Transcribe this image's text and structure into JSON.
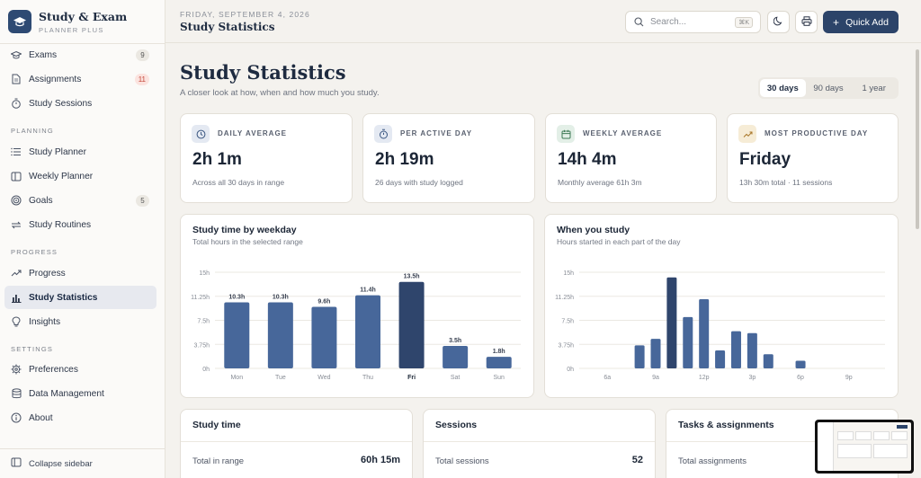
{
  "brand": {
    "title": "Study & Exam",
    "subtitle": "PLANNER PLUS"
  },
  "sidebar": {
    "top_items": [
      {
        "label": "Exams",
        "icon": "graduation-cap-icon",
        "badge": "9"
      },
      {
        "label": "Assignments",
        "icon": "file-icon",
        "badge": "11"
      },
      {
        "label": "Study Sessions",
        "icon": "stopwatch-icon"
      }
    ],
    "sections": [
      {
        "label": "PLANNING",
        "items": [
          {
            "label": "Study Planner",
            "icon": "list-icon"
          },
          {
            "label": "Weekly Planner",
            "icon": "columns-icon"
          },
          {
            "label": "Goals",
            "icon": "target-icon",
            "badge": "5"
          },
          {
            "label": "Study Routines",
            "icon": "repeat-icon"
          }
        ]
      },
      {
        "label": "PROGRESS",
        "items": [
          {
            "label": "Progress",
            "icon": "trend-icon"
          },
          {
            "label": "Study Statistics",
            "icon": "bar-chart-icon",
            "active": true
          },
          {
            "label": "Insights",
            "icon": "lightbulb-icon"
          }
        ]
      },
      {
        "label": "SETTINGS",
        "items": [
          {
            "label": "Preferences",
            "icon": "gear-icon"
          },
          {
            "label": "Data Management",
            "icon": "database-icon"
          },
          {
            "label": "About",
            "icon": "info-icon"
          }
        ]
      }
    ],
    "collapse_label": "Collapse sidebar"
  },
  "header": {
    "date": "FRIDAY, SEPTEMBER 4, 2026",
    "title": "Study Statistics",
    "search_placeholder": "Search...",
    "search_shortcut": "⌘K",
    "quick_add": "Quick Add"
  },
  "page": {
    "title": "Study Statistics",
    "subtitle": "A closer look at how, when and how much you study.",
    "ranges": [
      "30 days",
      "90 days",
      "1 year"
    ],
    "active_range": "30 days"
  },
  "stats": [
    {
      "label": "DAILY AVERAGE",
      "value": "2h 1m",
      "note": "Across all 30 days in range",
      "icon": "clock-icon",
      "tint": "#e4e9f2"
    },
    {
      "label": "PER ACTIVE DAY",
      "value": "2h 19m",
      "note": "26 days with study logged",
      "icon": "stopwatch-icon",
      "tint": "#e4e9f2"
    },
    {
      "label": "WEEKLY AVERAGE",
      "value": "14h 4m",
      "note": "Monthly average 61h 3m",
      "icon": "calendar-icon",
      "tint": "#e3efe7"
    },
    {
      "label": "MOST PRODUCTIVE DAY",
      "value": "Friday",
      "note": "13h 30m total · 11 sessions",
      "icon": "trend-icon",
      "tint": "#f6ecd6"
    }
  ],
  "colors": {
    "accent": "#2c4469",
    "bar": "#47679a",
    "bar_highlight": "#2f456c"
  },
  "chart_data": [
    {
      "type": "bar",
      "title": "Study time by weekday",
      "subtitle": "Total hours in the selected range",
      "categories": [
        "Mon",
        "Tue",
        "Wed",
        "Thu",
        "Fri",
        "Sat",
        "Sun"
      ],
      "values": [
        10.3,
        10.3,
        9.6,
        11.4,
        13.5,
        3.5,
        1.8
      ],
      "value_labels": [
        "10.3h",
        "10.3h",
        "9.6h",
        "11.4h",
        "13.5h",
        "3.5h",
        "1.8h"
      ],
      "highlight": "Fri",
      "yticks": [
        "0h",
        "3.75h",
        "7.5h",
        "11.25h",
        "15h"
      ],
      "ylim": [
        0,
        15
      ],
      "grid": true
    },
    {
      "type": "bar",
      "title": "When you study",
      "subtitle": "Hours started in each part of the day",
      "x": [
        8,
        9,
        10,
        11,
        12,
        13,
        14,
        15,
        16,
        18
      ],
      "values": [
        3.6,
        4.6,
        14.2,
        8.0,
        10.8,
        2.8,
        5.8,
        5.5,
        2.2,
        1.2
      ],
      "highlight": 10,
      "xticks": [
        "6a",
        "9a",
        "12p",
        "3p",
        "6p",
        "9p"
      ],
      "yticks": [
        "0h",
        "3.75h",
        "7.5h",
        "11.25h",
        "15h"
      ],
      "ylim": [
        0,
        15
      ],
      "grid": true
    }
  ],
  "bottom_cards": [
    {
      "title": "Study time",
      "label": "Total in range",
      "value": "60h 15m"
    },
    {
      "title": "Sessions",
      "label": "Total sessions",
      "value": "52"
    },
    {
      "title": "Tasks & assignments",
      "label": "Total assignments",
      "value": ""
    }
  ]
}
